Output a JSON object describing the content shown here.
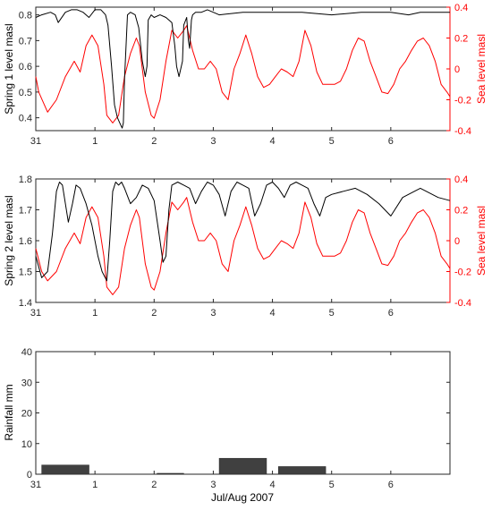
{
  "chart_data": [
    {
      "type": "line",
      "x_tick_labels": [
        "31",
        "1",
        "2",
        "3",
        "4",
        "5",
        "6"
      ],
      "xlim": [
        0,
        7
      ],
      "ylabel_left": "Spring 1 level masl",
      "ylabel_right": "Sea level masl",
      "ylim_left": [
        0.35,
        0.83
      ],
      "ylim_right": [
        -0.4,
        0.4
      ],
      "left_ticks": [
        "0.4",
        "0.5",
        "0.6",
        "0.7",
        "0.8"
      ],
      "right_ticks": [
        "-0.4",
        "-0.2",
        "0",
        "0.2",
        "0.4"
      ],
      "colors": {
        "left_series": "#000000",
        "right_series": "#ff0000",
        "right_axis": "#ff0000"
      },
      "series": [
        {
          "axis": "left",
          "x": [
            0.0,
            0.1,
            0.25,
            0.33,
            0.38,
            0.5,
            0.6,
            0.7,
            0.8,
            0.9,
            1.0,
            1.1,
            1.18,
            1.22,
            1.28,
            1.33,
            1.38,
            1.42,
            1.44,
            1.46,
            1.48,
            1.5,
            1.55,
            1.6,
            1.68,
            1.74,
            1.8,
            1.85,
            1.88,
            1.9,
            1.95,
            2.0,
            2.1,
            2.2,
            2.3,
            2.35,
            2.38,
            2.42,
            2.48,
            2.5,
            2.55,
            2.58,
            2.6,
            2.63,
            2.65,
            2.7,
            2.8,
            2.9,
            3.0,
            3.1,
            3.5,
            4.0,
            4.5,
            5.0,
            5.5,
            6.0,
            6.3,
            6.5,
            6.75,
            7.0
          ],
          "y": [
            0.79,
            0.8,
            0.81,
            0.8,
            0.77,
            0.81,
            0.82,
            0.82,
            0.81,
            0.79,
            0.82,
            0.82,
            0.8,
            0.76,
            0.6,
            0.45,
            0.4,
            0.38,
            0.37,
            0.36,
            0.38,
            0.55,
            0.8,
            0.81,
            0.8,
            0.75,
            0.62,
            0.56,
            0.6,
            0.78,
            0.8,
            0.79,
            0.8,
            0.79,
            0.77,
            0.68,
            0.6,
            0.56,
            0.62,
            0.76,
            0.79,
            0.7,
            0.67,
            0.78,
            0.8,
            0.81,
            0.81,
            0.82,
            0.81,
            0.8,
            0.81,
            0.81,
            0.81,
            0.8,
            0.81,
            0.81,
            0.8,
            0.81,
            0.81,
            0.81
          ]
        },
        {
          "axis": "right",
          "x": [
            0.0,
            0.05,
            0.2,
            0.35,
            0.5,
            0.65,
            0.75,
            0.85,
            0.95,
            1.05,
            1.15,
            1.2,
            1.3,
            1.4,
            1.5,
            1.6,
            1.7,
            1.75,
            1.85,
            1.95,
            2.0,
            2.1,
            2.2,
            2.3,
            2.4,
            2.5,
            2.55,
            2.65,
            2.75,
            2.85,
            2.95,
            3.05,
            3.15,
            3.25,
            3.35,
            3.45,
            3.55,
            3.65,
            3.75,
            3.85,
            3.95,
            4.05,
            4.15,
            4.25,
            4.35,
            4.45,
            4.55,
            4.65,
            4.75,
            4.85,
            4.95,
            5.05,
            5.15,
            5.25,
            5.35,
            5.45,
            5.55,
            5.65,
            5.75,
            5.85,
            5.95,
            6.05,
            6.15,
            6.25,
            6.35,
            6.45,
            6.55,
            6.65,
            6.75,
            6.85,
            6.95,
            7.0
          ],
          "y": [
            -0.05,
            -0.15,
            -0.28,
            -0.2,
            -0.05,
            0.05,
            -0.02,
            0.15,
            0.22,
            0.15,
            -0.1,
            -0.3,
            -0.35,
            -0.3,
            -0.05,
            0.1,
            0.2,
            0.15,
            -0.15,
            -0.3,
            -0.32,
            -0.2,
            0.05,
            0.25,
            0.2,
            0.25,
            0.28,
            0.12,
            0.0,
            0.0,
            0.05,
            0.0,
            -0.15,
            -0.2,
            0.0,
            0.1,
            0.22,
            0.1,
            -0.05,
            -0.12,
            -0.1,
            -0.05,
            0.0,
            -0.02,
            -0.05,
            0.05,
            0.25,
            0.15,
            -0.02,
            -0.1,
            -0.1,
            -0.1,
            -0.08,
            0.0,
            0.12,
            0.2,
            0.18,
            0.05,
            -0.05,
            -0.15,
            -0.16,
            -0.1,
            0.0,
            0.05,
            0.12,
            0.18,
            0.2,
            0.15,
            0.05,
            -0.1,
            -0.15,
            -0.18
          ]
        }
      ]
    },
    {
      "type": "line",
      "x_tick_labels": [
        "31",
        "1",
        "2",
        "3",
        "4",
        "5",
        "6"
      ],
      "xlim": [
        0,
        7
      ],
      "ylabel_left": "Spring 2 level masl",
      "ylabel_right": "Sea level masl",
      "ylim_left": [
        1.4,
        1.8
      ],
      "ylim_right": [
        -0.4,
        0.4
      ],
      "left_ticks": [
        "1.4",
        "1.5",
        "1.6",
        "1.7",
        "1.8"
      ],
      "right_ticks": [
        "-0.4",
        "-0.2",
        "0",
        "0.2",
        "0.4"
      ],
      "colors": {
        "left_series": "#000000",
        "right_series": "#ff0000",
        "right_axis": "#ff0000"
      },
      "series": [
        {
          "axis": "left",
          "x": [
            0.0,
            0.1,
            0.2,
            0.28,
            0.35,
            0.4,
            0.45,
            0.55,
            0.62,
            0.68,
            0.75,
            0.85,
            0.95,
            1.05,
            1.12,
            1.2,
            1.25,
            1.3,
            1.35,
            1.4,
            1.45,
            1.5,
            1.6,
            1.7,
            1.8,
            1.9,
            2.0,
            2.1,
            2.15,
            2.2,
            2.25,
            2.3,
            2.4,
            2.5,
            2.6,
            2.7,
            2.8,
            2.9,
            3.0,
            3.1,
            3.2,
            3.3,
            3.4,
            3.5,
            3.6,
            3.7,
            3.8,
            3.9,
            4.0,
            4.1,
            4.2,
            4.3,
            4.4,
            4.5,
            4.6,
            4.7,
            4.8,
            4.9,
            5.0,
            5.2,
            5.4,
            5.6,
            5.8,
            6.0,
            6.2,
            6.4,
            6.5,
            6.6,
            6.8,
            7.0
          ],
          "y": [
            1.55,
            1.48,
            1.5,
            1.62,
            1.76,
            1.79,
            1.78,
            1.66,
            1.72,
            1.78,
            1.77,
            1.72,
            1.65,
            1.55,
            1.5,
            1.47,
            1.6,
            1.76,
            1.79,
            1.78,
            1.79,
            1.77,
            1.72,
            1.74,
            1.78,
            1.77,
            1.73,
            1.6,
            1.53,
            1.55,
            1.7,
            1.78,
            1.79,
            1.78,
            1.77,
            1.72,
            1.76,
            1.79,
            1.78,
            1.75,
            1.68,
            1.76,
            1.79,
            1.78,
            1.77,
            1.68,
            1.72,
            1.78,
            1.79,
            1.77,
            1.74,
            1.78,
            1.79,
            1.78,
            1.77,
            1.72,
            1.68,
            1.74,
            1.75,
            1.76,
            1.77,
            1.75,
            1.72,
            1.68,
            1.74,
            1.76,
            1.77,
            1.76,
            1.74,
            1.73
          ]
        },
        {
          "axis": "right",
          "x": [
            0.0,
            0.1,
            0.2,
            0.35,
            0.5,
            0.65,
            0.75,
            0.85,
            0.95,
            1.05,
            1.15,
            1.2,
            1.3,
            1.4,
            1.5,
            1.6,
            1.7,
            1.75,
            1.85,
            1.95,
            2.0,
            2.1,
            2.2,
            2.3,
            2.4,
            2.5,
            2.55,
            2.65,
            2.75,
            2.85,
            2.95,
            3.05,
            3.15,
            3.25,
            3.35,
            3.45,
            3.55,
            3.65,
            3.75,
            3.85,
            3.95,
            4.05,
            4.15,
            4.25,
            4.35,
            4.45,
            4.55,
            4.65,
            4.75,
            4.85,
            4.95,
            5.05,
            5.15,
            5.25,
            5.35,
            5.45,
            5.55,
            5.65,
            5.75,
            5.85,
            5.95,
            6.05,
            6.15,
            6.25,
            6.35,
            6.45,
            6.55,
            6.65,
            6.75,
            6.85,
            6.95,
            7.0
          ],
          "y": [
            -0.05,
            -0.2,
            -0.26,
            -0.2,
            -0.05,
            0.05,
            -0.02,
            0.15,
            0.22,
            0.15,
            -0.1,
            -0.3,
            -0.35,
            -0.3,
            -0.05,
            0.1,
            0.2,
            0.15,
            -0.15,
            -0.3,
            -0.32,
            -0.2,
            0.05,
            0.25,
            0.2,
            0.25,
            0.28,
            0.12,
            0.0,
            0.0,
            0.05,
            0.0,
            -0.15,
            -0.2,
            0.0,
            0.1,
            0.22,
            0.1,
            -0.05,
            -0.12,
            -0.1,
            -0.05,
            0.0,
            -0.02,
            -0.05,
            0.05,
            0.25,
            0.15,
            -0.02,
            -0.1,
            -0.1,
            -0.1,
            -0.08,
            0.0,
            0.12,
            0.2,
            0.18,
            0.05,
            -0.05,
            -0.15,
            -0.16,
            -0.1,
            0.0,
            0.05,
            0.12,
            0.18,
            0.2,
            0.15,
            0.05,
            -0.1,
            -0.15,
            -0.18
          ]
        }
      ]
    },
    {
      "type": "bar",
      "x_tick_labels": [
        "31",
        "1",
        "2",
        "3",
        "4",
        "5",
        "6"
      ],
      "xlim": [
        0,
        7
      ],
      "xlabel": "Jul/Aug 2007",
      "ylabel": "Rainfall mm",
      "ylim": [
        0,
        40
      ],
      "y_ticks": [
        "0",
        "10",
        "20",
        "30",
        "40"
      ],
      "colors": {
        "bar": "#404040"
      },
      "bars": [
        {
          "x0": 0.1,
          "x1": 0.9,
          "value": 3
        },
        {
          "x0": 2.05,
          "x1": 2.5,
          "value": 0.3
        },
        {
          "x0": 3.1,
          "x1": 3.9,
          "value": 5.2
        },
        {
          "x0": 4.1,
          "x1": 4.9,
          "value": 2.5
        }
      ]
    }
  ]
}
